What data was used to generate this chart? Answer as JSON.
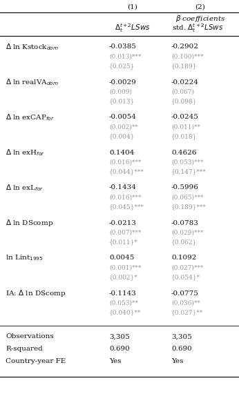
{
  "col_headers": [
    "(1)",
    "(2)"
  ],
  "col_subheader2": [
    "β coefficients"
  ],
  "col_subheader3_1": "$\\Delta_t^{t+2}LSws$",
  "col_subheader3_2": "std. $\\Delta_t^{t+2}LSws$",
  "row_data": [
    [
      "-0.0385",
      "-0.2902",
      "(0.013)***",
      "(0.100)***",
      "{0.025}",
      "{0.189}"
    ],
    [
      "-0.0029",
      "-0.0224",
      "(0.009)",
      "(0.067)",
      "{0.013}",
      "{0.098}"
    ],
    [
      "-0.0054",
      "-0.0245",
      "(0.002)**",
      "(0.011)**",
      "{0.004}",
      "{0.018}"
    ],
    [
      "0.1404",
      "0.4626",
      "(0.016)***",
      "(0.053)***",
      "{0.044}***",
      "{0.147}***"
    ],
    [
      "-0.1434",
      "-0.5996",
      "(0.016)***",
      "(0.065)***",
      "{0.045}***",
      "{0.189}***"
    ],
    [
      "-0.0213",
      "-0.0783",
      "(0.007)***",
      "(0.029)***",
      "{0.011}*",
      "{0.062}"
    ],
    [
      "0.0045",
      "0.1092",
      "(0.001)***",
      "(0.027)***",
      "{0.002}*",
      "{0.054}*"
    ],
    [
      "-0.1143",
      "-0.0775",
      "(0.053)**",
      "(0.036)**",
      "{0.040}**",
      "{0.027}**"
    ]
  ],
  "footer_labels": [
    "Observations",
    "R-squared",
    "Country-year FE"
  ],
  "footer_col1": [
    "3,305",
    "0.690",
    "Yes"
  ],
  "footer_col2": [
    "3,305",
    "0.690",
    "Yes"
  ],
  "bg_color": "#ffffff",
  "text_color": "#111111",
  "gray_color": "#999999"
}
